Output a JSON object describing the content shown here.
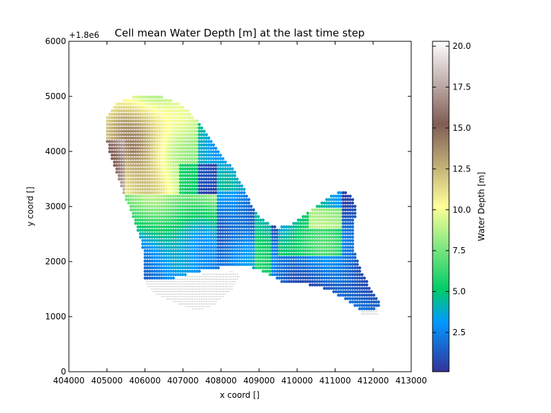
{
  "chart_data": {
    "type": "scatter",
    "title": "Cell mean Water Depth [m] at the last time step",
    "xlabel": "x coord []",
    "ylabel": "y coord []",
    "y_offset_label": "+1.8e6",
    "xlim": [
      404000,
      413000
    ],
    "ylim": [
      0,
      6000
    ],
    "x_ticks": [
      "404000",
      "405000",
      "406000",
      "407000",
      "408000",
      "409000",
      "410000",
      "411000",
      "412000",
      "413000"
    ],
    "y_ticks": [
      "0",
      "1000",
      "2000",
      "3000",
      "4000",
      "5000",
      "6000"
    ],
    "colorbar": {
      "label": "Water Depth [m]",
      "colormap": "terrain",
      "range": [
        0.1,
        20.3
      ],
      "ticks": [
        "2.5",
        "5.0",
        "7.5",
        "10.0",
        "12.5",
        "15.0",
        "17.5",
        "20.0"
      ]
    },
    "dry_cell_color": "#9a9a9a",
    "grid": false
  }
}
